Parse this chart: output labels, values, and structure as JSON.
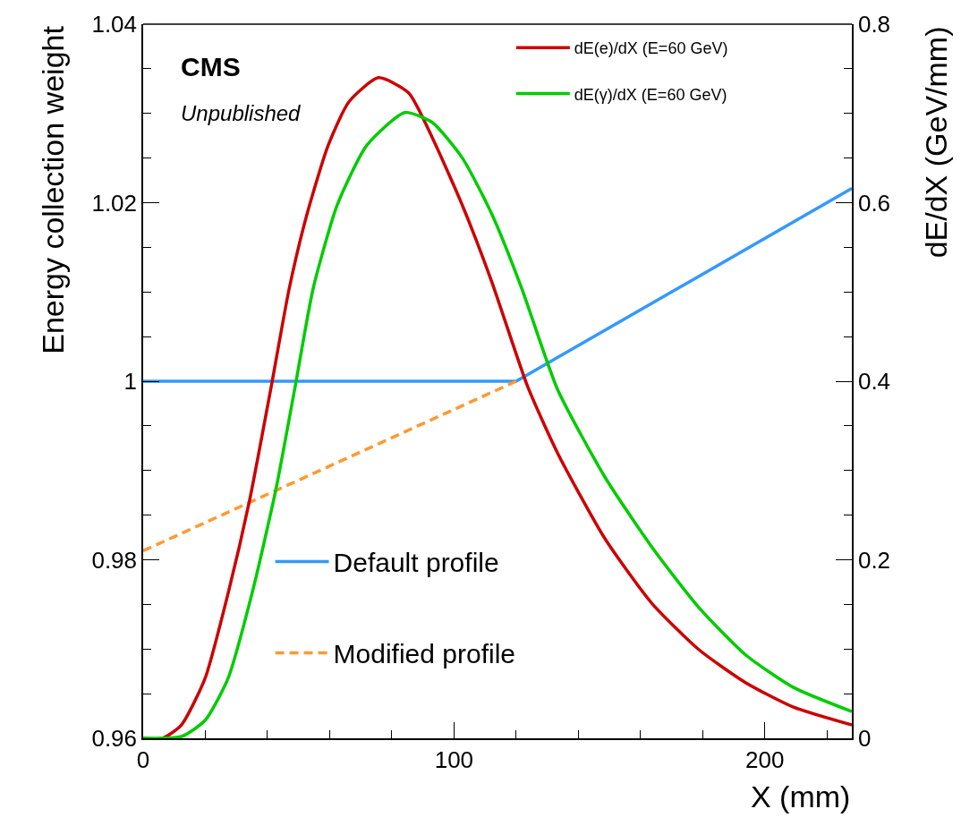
{
  "chart_data": {
    "type": "line",
    "xlabel": "X (mm)",
    "ylabel": "Energy collection weight",
    "y2label": "dE/dX (GeV/mm)",
    "annotations": [
      "CMS",
      "Unpublished"
    ],
    "xlim": [
      0,
      228
    ],
    "xticks": [
      0,
      100,
      200
    ],
    "ylim": [
      0.96,
      1.04
    ],
    "yticks": [
      0.96,
      0.98,
      {
        "value": 1,
        "label": "1"
      },
      1.02,
      1.04
    ],
    "y2lim": [
      0,
      0.8
    ],
    "y2ticks": [
      0,
      0.2,
      0.4,
      0.6,
      0.8
    ],
    "legend": "top right",
    "series": [
      {
        "name": "dE(e)/dX (E=60 GeV)",
        "color": "#cc0000",
        "axis": "y2",
        "x": [
          0,
          6.2,
          12.3,
          19.9,
          27.3,
          34.2,
          41.2,
          47,
          52.7,
          59.5,
          66.2,
          75.7,
          85.4,
          93,
          102.7,
          112.2,
          123.7,
          133.4,
          148.5,
          163.7,
          178.9,
          194,
          209.2,
          228
        ],
        "values": [
          0,
          0.0,
          0.015,
          0.067,
          0.162,
          0.266,
          0.394,
          0.504,
          0.587,
          0.664,
          0.713,
          0.74,
          0.723,
          0.673,
          0.597,
          0.511,
          0.394,
          0.319,
          0.224,
          0.151,
          0.099,
          0.062,
          0.035,
          0.015
        ]
      },
      {
        "name": "dE(γ)/dX (E=60 GeV)",
        "color": "#00cc00",
        "axis": "y2",
        "x": [
          0,
          12.3,
          19.9,
          27.3,
          35,
          42.6,
          48.9,
          54.7,
          62.4,
          71.9,
          84.2,
          93,
          102.7,
          112.2,
          121.8,
          133.3,
          148.5,
          163.7,
          178.9,
          194,
          209.2,
          228
        ],
        "values": [
          0,
          0.002,
          0.02,
          0.067,
          0.162,
          0.277,
          0.394,
          0.504,
          0.597,
          0.664,
          0.701,
          0.69,
          0.65,
          0.587,
          0.504,
          0.391,
          0.293,
          0.214,
          0.146,
          0.093,
          0.057,
          0.03
        ]
      },
      {
        "name": "Default profile",
        "color": "#3399ff",
        "x": [
          0,
          120,
          228
        ],
        "values": [
          1,
          1,
          1.0216
        ]
      },
      {
        "name": "Modified profile",
        "color": "#ff9933",
        "line_style": "dashed",
        "x": [
          0,
          120
        ],
        "values": [
          0.981,
          1.0
        ]
      }
    ]
  }
}
